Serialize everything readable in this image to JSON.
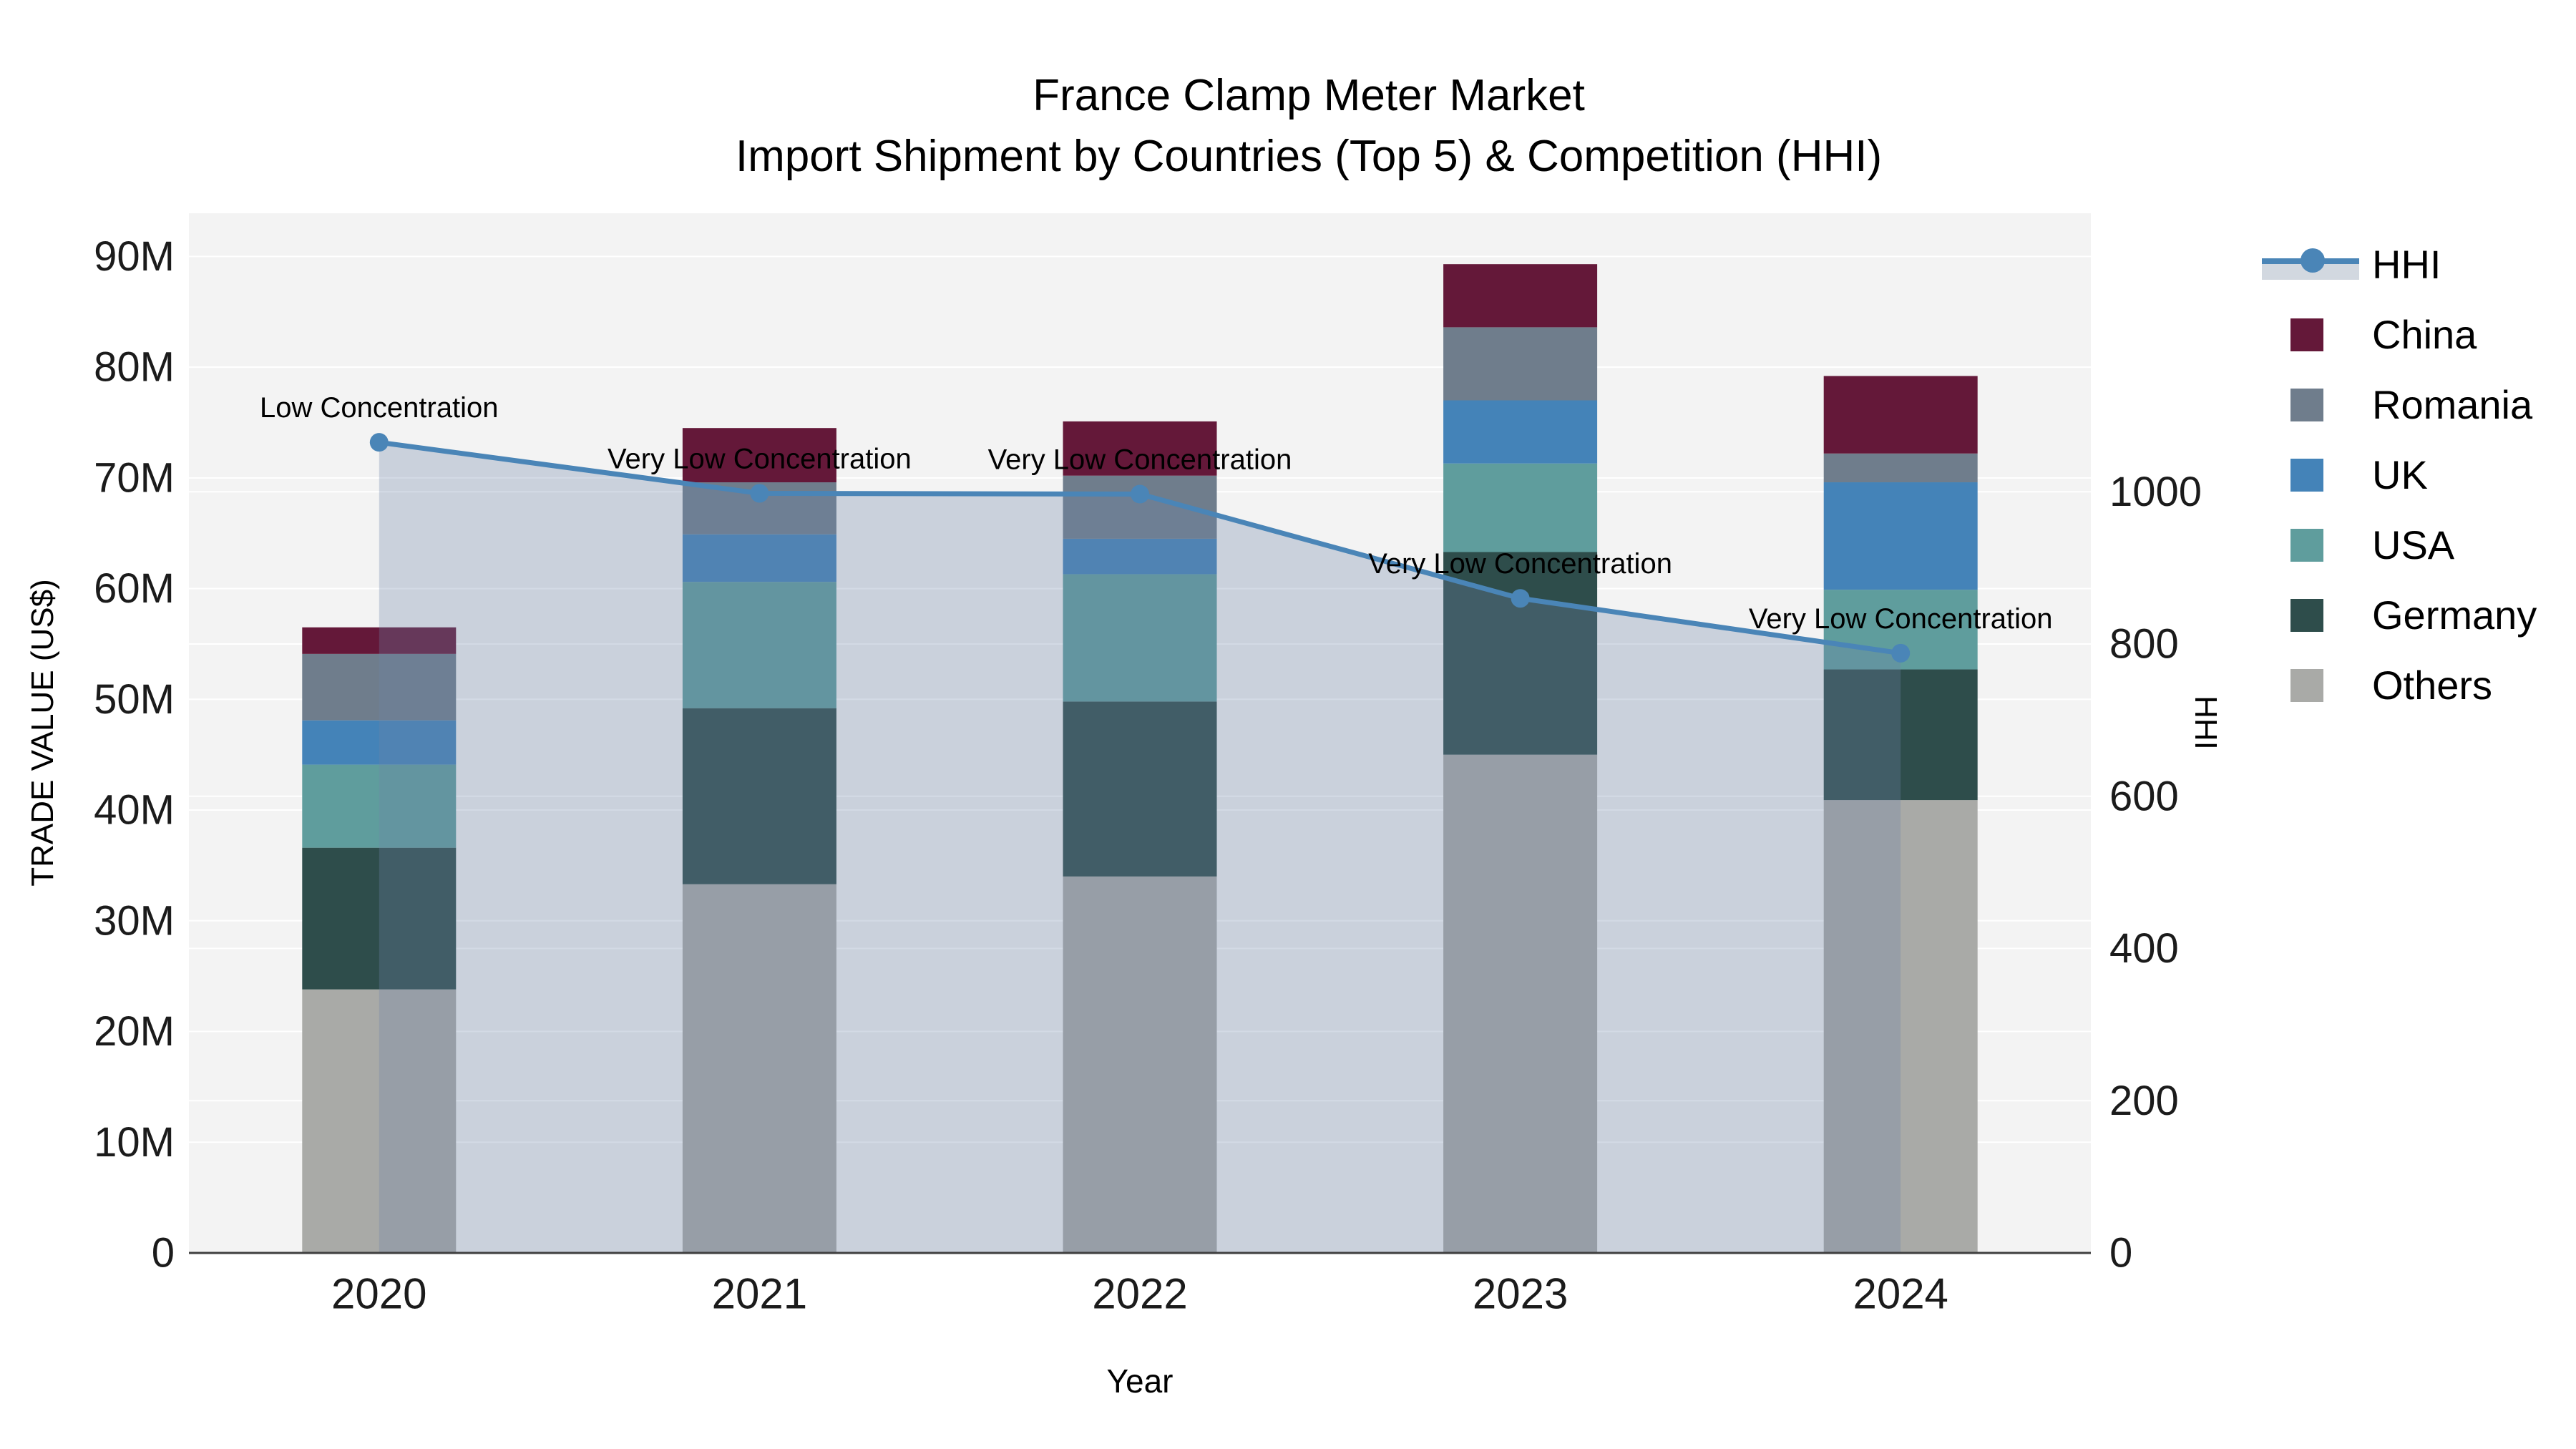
{
  "title": {
    "line1": "France Clamp Meter Market",
    "line2": "Import Shipment by Countries (Top 5) & Competition (HHI)"
  },
  "chart_data": {
    "type": "combo_stacked_bar_line",
    "categories": [
      "2020",
      "2021",
      "2022",
      "2023",
      "2024"
    ],
    "xlabel": "Year",
    "y_left": {
      "label": "TRADE VALUE (US$)",
      "tick_labels": [
        "0",
        "10M",
        "20M",
        "30M",
        "40M",
        "50M",
        "60M",
        "70M",
        "80M",
        "90M"
      ],
      "tick_values": [
        0,
        10,
        20,
        30,
        40,
        50,
        60,
        70,
        80,
        90
      ],
      "axis_max": 93.9,
      "unit": "million US$"
    },
    "y_right": {
      "label": "HHI",
      "tick_labels": [
        "0",
        "200",
        "400",
        "600",
        "800",
        "1000"
      ],
      "tick_values": [
        0,
        200,
        400,
        600,
        800,
        1000
      ],
      "axis_max": 1366
    },
    "series": [
      {
        "name": "China",
        "color": "#641839",
        "values": [
          2.4,
          4.9,
          4.9,
          5.7,
          7.0
        ]
      },
      {
        "name": "Romania",
        "color": "#6f7d8c",
        "values": [
          6.0,
          4.7,
          5.7,
          6.6,
          2.6
        ]
      },
      {
        "name": "UK",
        "color": "#4483b8",
        "values": [
          4.0,
          4.3,
          3.2,
          5.7,
          9.7
        ]
      },
      {
        "name": "USA",
        "color": "#5f9d9d",
        "values": [
          7.5,
          11.4,
          11.5,
          8.0,
          7.2
        ]
      },
      {
        "name": "Germany",
        "color": "#2e4d4b",
        "values": [
          12.8,
          15.9,
          15.8,
          18.3,
          11.8
        ]
      },
      {
        "name": "Others",
        "color": "#a9aaa7",
        "values": [
          23.8,
          33.3,
          34.0,
          45.0,
          40.9
        ]
      }
    ],
    "stack_order_bottom_to_top": [
      "Others",
      "Germany",
      "USA",
      "UK",
      "Romania",
      "China"
    ],
    "hhi": {
      "name": "HHI",
      "line_color": "#4a85b7",
      "area_fill_color": "rgba(110,134,168,0.30)",
      "values": [
        1065,
        998,
        997,
        860,
        788
      ]
    },
    "annotations": [
      {
        "x": "2020",
        "text": "Low Concentration"
      },
      {
        "x": "2021",
        "text": "Very Low Concentration"
      },
      {
        "x": "2022",
        "text": "Very Low Concentration"
      },
      {
        "x": "2023",
        "text": "Very Low Concentration"
      },
      {
        "x": "2024",
        "text": "Very Low Concentration"
      }
    ],
    "plot_bg_color": "#f3f3f3",
    "grid_color": "#ffffff",
    "axis_line_color": "#3f3f3f",
    "legend_position": "right"
  },
  "legend": {
    "items": [
      "HHI",
      "China",
      "Romania",
      "UK",
      "USA",
      "Germany",
      "Others"
    ]
  }
}
